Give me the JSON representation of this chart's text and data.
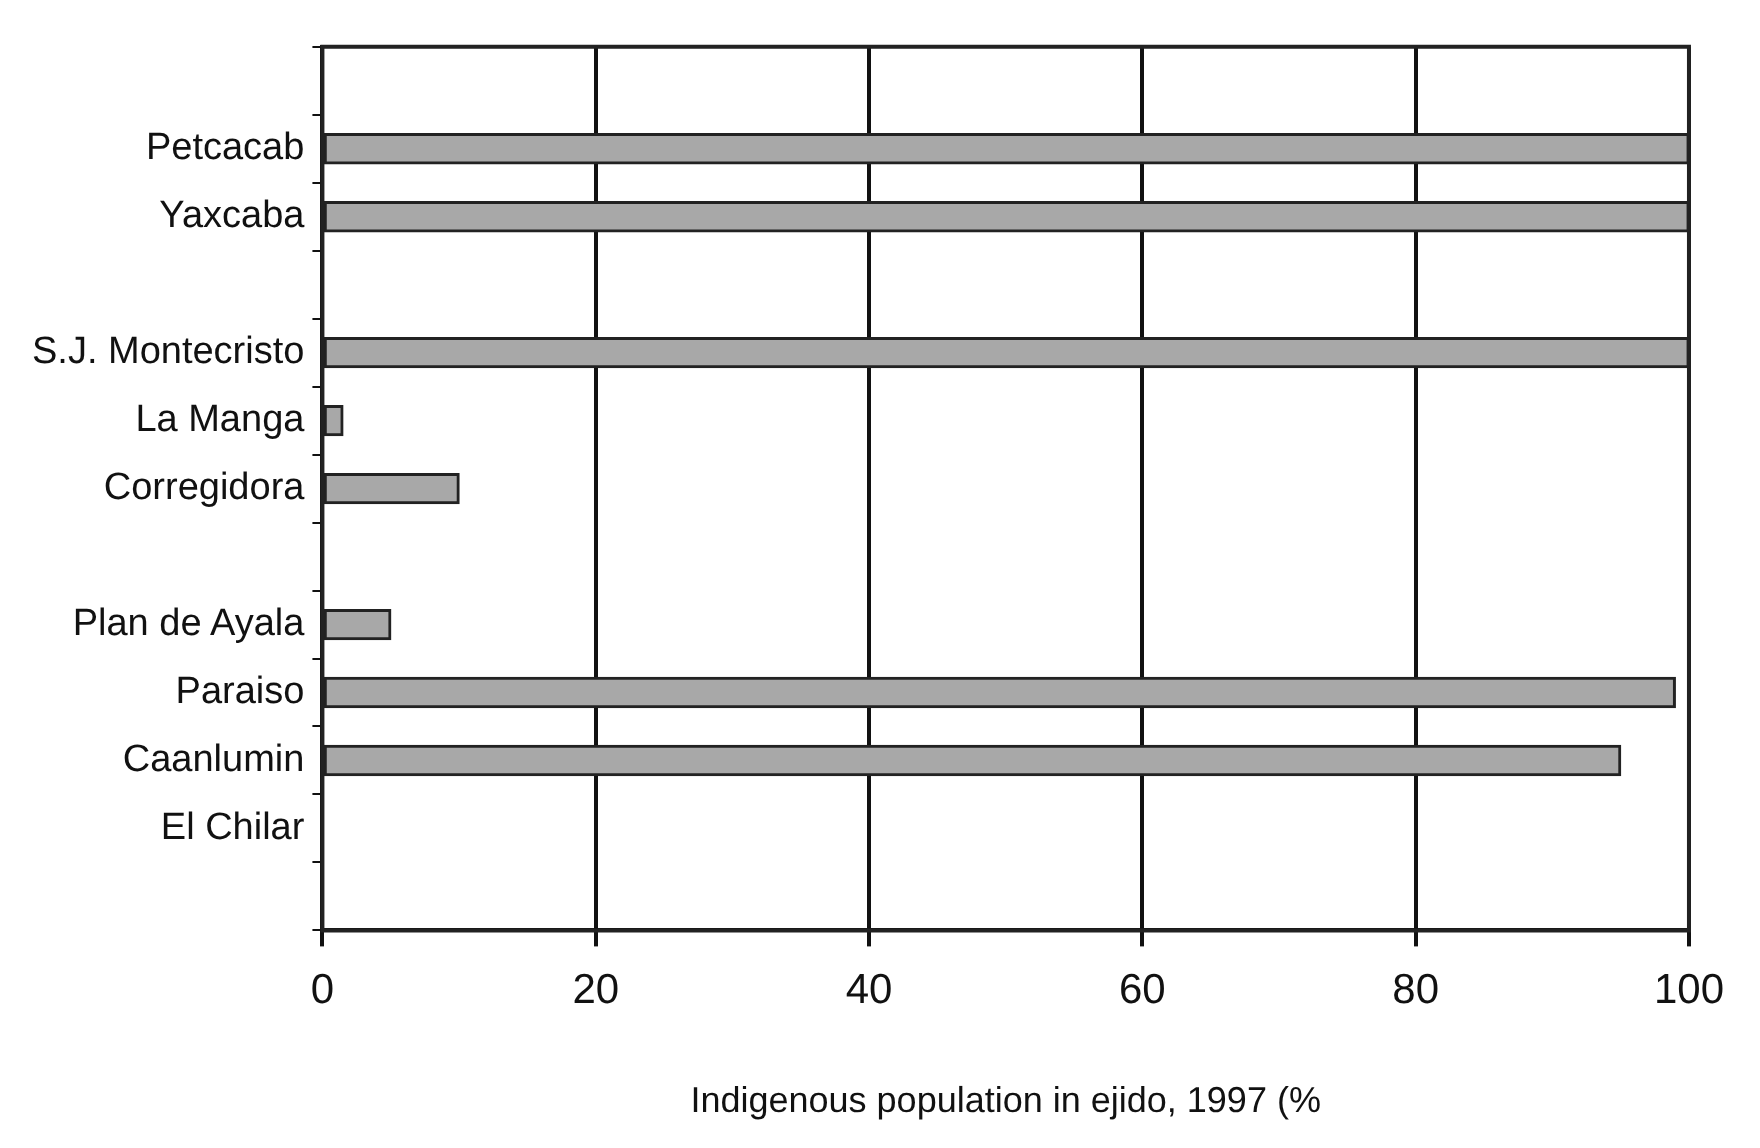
{
  "chart_data": {
    "type": "bar",
    "orientation": "horizontal",
    "xlabel": "Indigenous population in ejido, 1997 (%",
    "categories": [
      null,
      "Petcacab",
      "Yaxcaba",
      null,
      "S.J. Montecristo",
      "La Manga",
      "Corregidora",
      null,
      "Plan de Ayala",
      "Paraiso",
      "Caanlumin",
      "El Chilar",
      null
    ],
    "values": [
      null,
      100,
      100,
      null,
      100,
      1.5,
      10,
      null,
      5,
      99,
      95,
      0,
      null
    ],
    "color": "#a8a8a8",
    "xlim": [
      0,
      100
    ],
    "xticks": [
      0,
      20,
      40,
      60,
      80,
      100
    ],
    "grid": "x",
    "legend": false
  }
}
